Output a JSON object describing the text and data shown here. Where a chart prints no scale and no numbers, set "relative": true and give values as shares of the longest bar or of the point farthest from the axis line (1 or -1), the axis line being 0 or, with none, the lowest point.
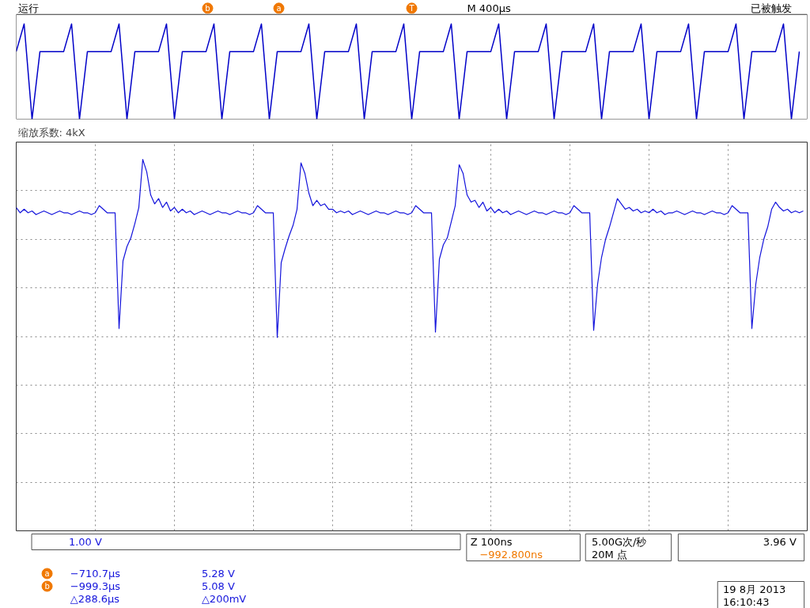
{
  "chart_data": [
    {
      "type": "line",
      "relative": true,
      "categories": [
        null,
        null,
        null,
        null,
        null,
        null,
        null,
        null,
        null,
        null,
        null,
        null,
        null,
        null,
        null,
        null,
        null,
        null,
        null,
        null,
        null,
        null,
        null,
        null,
        null,
        null,
        null,
        null,
        null,
        null,
        null,
        null,
        null,
        null,
        null,
        null,
        null,
        null,
        null,
        null,
        null,
        null,
        null,
        null,
        null,
        null,
        null,
        null,
        null,
        null,
        null,
        null,
        null,
        null,
        null,
        null,
        null,
        null,
        null,
        null,
        null,
        null,
        null,
        null,
        null,
        null,
        null,
        null,
        null,
        null,
        null,
        null,
        null,
        null,
        null,
        null,
        null,
        null,
        null,
        null,
        null,
        null,
        null,
        null,
        null,
        null,
        null,
        null,
        null,
        null,
        null,
        null,
        null,
        null,
        null,
        null,
        null,
        null,
        null,
        null
      ],
      "series": [
        {
          "color": "#0000c8",
          "values": [
            0.71,
            1,
            0,
            0.71,
            0.71,
            0.71,
            0.71,
            1,
            0,
            0.71,
            0.71,
            0.71,
            0.71,
            1,
            0,
            0.71,
            0.71,
            0.71,
            0.71,
            1,
            0,
            0.71,
            0.71,
            0.71,
            0.71,
            1,
            0,
            0.71,
            0.71,
            0.71,
            0.71,
            1,
            0,
            0.71,
            0.71,
            0.71,
            0.71,
            1,
            0,
            0.71,
            0.71,
            0.71,
            0.71,
            1,
            0,
            0.71,
            0.71,
            0.71,
            0.71,
            1,
            0,
            0.71,
            0.71,
            0.71,
            0.71,
            1,
            0,
            0.71,
            0.71,
            0.71,
            0.71,
            1,
            0,
            0.71,
            0.71,
            0.71,
            0.71,
            1,
            0,
            0.71,
            0.71,
            0.71,
            0.71,
            1,
            0,
            0.71,
            0.71,
            0.71,
            0.71,
            1,
            0,
            0.71,
            0.71,
            0.71,
            0.71,
            1,
            0,
            0.71,
            0.71,
            0.71,
            0.71,
            1,
            0,
            0.71,
            0.71,
            0.71,
            0.71,
            1,
            0,
            0.71
          ]
        }
      ],
      "annotations": [
        "运行",
        "M 400µs",
        "已被触发",
        "b",
        "a",
        "T"
      ]
    },
    {
      "type": "line",
      "title": "缩放系数: 4kX",
      "relative": true,
      "grid": true,
      "categories": [
        null,
        null,
        null,
        null,
        null,
        null,
        null,
        null,
        null,
        null,
        null,
        null,
        null,
        null,
        null,
        null,
        null,
        null,
        null,
        null,
        null,
        null,
        null,
        null,
        null,
        null,
        null,
        null,
        null,
        null,
        null,
        null,
        null,
        null,
        null,
        null,
        null,
        null,
        null,
        null,
        null,
        null,
        null,
        null,
        null,
        null,
        null,
        null,
        null,
        null,
        null,
        null,
        null,
        null,
        null,
        null,
        null,
        null,
        null,
        null,
        null,
        null,
        null,
        null,
        null,
        null,
        null,
        null,
        null,
        null,
        null,
        null,
        null,
        null,
        null,
        null,
        null,
        null,
        null,
        null,
        null,
        null,
        null,
        null,
        null,
        null,
        null,
        null,
        null,
        null,
        null,
        null,
        null,
        null,
        null,
        null,
        null,
        null,
        null,
        null,
        null,
        null,
        null,
        null,
        null,
        null,
        null,
        null,
        null,
        null,
        null,
        null,
        null,
        null,
        null,
        null,
        null,
        null,
        null,
        null,
        null,
        null,
        null,
        null,
        null,
        null,
        null,
        null,
        null,
        null,
        null,
        null,
        null,
        null,
        null,
        null,
        null,
        null,
        null,
        null,
        null,
        null,
        null,
        null,
        null,
        null,
        null,
        null,
        null,
        null,
        null,
        null,
        null,
        null,
        null,
        null,
        null,
        null,
        null,
        null,
        null,
        null,
        null,
        null,
        null,
        null,
        null,
        null,
        null,
        null,
        null,
        null,
        null,
        null,
        null,
        null,
        null,
        null,
        null,
        null,
        null,
        null,
        null,
        null,
        null,
        null,
        null,
        null,
        null,
        null,
        null,
        null,
        null,
        null,
        null,
        null,
        null,
        null,
        null,
        null
      ],
      "series": [
        {
          "color": "#1414dc",
          "values": [
            0.73,
            0.7,
            0.72,
            0.7,
            0.71,
            0.69,
            0.7,
            0.71,
            0.7,
            0.69,
            0.7,
            0.71,
            0.7,
            0.7,
            0.69,
            0.7,
            0.71,
            0.7,
            0.7,
            0.69,
            0.7,
            0.74,
            0.72,
            0.7,
            0.7,
            0.7,
            0.05,
            0.43,
            0.51,
            0.56,
            0.64,
            0.73,
            1.0,
            0.93,
            0.8,
            0.75,
            0.78,
            0.73,
            0.76,
            0.71,
            0.73,
            0.7,
            0.72,
            0.7,
            0.71,
            0.69,
            0.7,
            0.71,
            0.7,
            0.69,
            0.7,
            0.71,
            0.7,
            0.7,
            0.69,
            0.7,
            0.71,
            0.7,
            0.7,
            0.69,
            0.7,
            0.74,
            0.72,
            0.7,
            0.7,
            0.7,
            0,
            0.42,
            0.5,
            0.57,
            0.63,
            0.72,
            0.98,
            0.92,
            0.81,
            0.74,
            0.77,
            0.74,
            0.75,
            0.72,
            0.72,
            0.7,
            0.71,
            0.7,
            0.71,
            0.69,
            0.7,
            0.71,
            0.7,
            0.69,
            0.7,
            0.71,
            0.7,
            0.7,
            0.69,
            0.7,
            0.71,
            0.7,
            0.7,
            0.69,
            0.7,
            0.74,
            0.72,
            0.7,
            0.7,
            0.7,
            0.03,
            0.44,
            0.52,
            0.56,
            0.65,
            0.74,
            0.97,
            0.92,
            0.8,
            0.76,
            0.77,
            0.73,
            0.76,
            0.71,
            0.73,
            0.7,
            0.72,
            0.7,
            0.71,
            0.69,
            0.7,
            0.71,
            0.7,
            0.69,
            0.7,
            0.71,
            0.7,
            0.7,
            0.69,
            0.7,
            0.71,
            0.7,
            0.7,
            0.69,
            0.7,
            0.74,
            0.72,
            0.7,
            0.7,
            0.7,
            0.04,
            0.3,
            0.45,
            0.55,
            0.62,
            0.7,
            0.78,
            0.75,
            0.72,
            0.73,
            0.71,
            0.72,
            0.7,
            0.71,
            0.7,
            0.72,
            0.7,
            0.71,
            0.69,
            0.7,
            0.7,
            0.71,
            0.7,
            0.69,
            0.7,
            0.71,
            0.7,
            0.7,
            0.69,
            0.7,
            0.71,
            0.7,
            0.7,
            0.69,
            0.7,
            0.74,
            0.72,
            0.7,
            0.7,
            0.7,
            0.05,
            0.3,
            0.45,
            0.55,
            0.62,
            0.72,
            0.76,
            0.73,
            0.71,
            0.72,
            0.7,
            0.71,
            0.7,
            0.71
          ]
        }
      ],
      "annotations": [
        "a",
        "−710.7µs",
        "5.28 V",
        "b",
        "−999.3µs",
        "5.08 V",
        "△288.6µs",
        "△200mV",
        "1.00 V",
        "Z 100ns",
        "−992.800ns",
        "5.00G次/秒",
        "20M 点",
        "3.96 V",
        "19 8月 2013",
        "16:10:43"
      ]
    }
  ]
}
